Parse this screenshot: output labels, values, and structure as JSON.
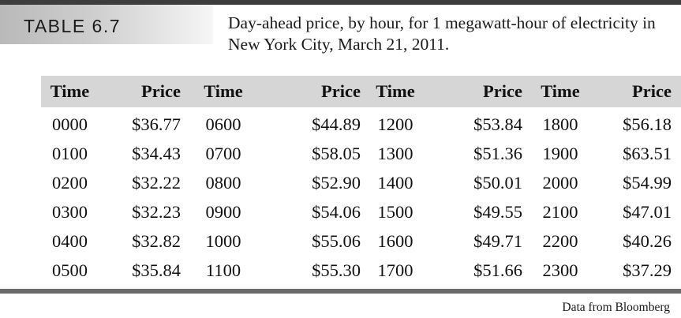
{
  "table_label": "TABLE 6.7",
  "caption": "Day-ahead price, by hour, for 1 megawatt-hour of electricity in New York City, March 21, 2011.",
  "headers": [
    "Time",
    "Price",
    "Time",
    "Price",
    "Time",
    "Price",
    "Time",
    "Price"
  ],
  "rows": [
    [
      "0000",
      "$36.77",
      "0600",
      "$44.89",
      "1200",
      "$53.84",
      "1800",
      "$56.18"
    ],
    [
      "0100",
      "$34.43",
      "0700",
      "$58.05",
      "1300",
      "$51.36",
      "1900",
      "$63.51"
    ],
    [
      "0200",
      "$32.22",
      "0800",
      "$52.90",
      "1400",
      "$50.01",
      "2000",
      "$54.99"
    ],
    [
      "0300",
      "$32.23",
      "0900",
      "$54.06",
      "1500",
      "$49.55",
      "2100",
      "$47.01"
    ],
    [
      "0400",
      "$32.82",
      "1000",
      "$55.06",
      "1600",
      "$49.71",
      "2200",
      "$40.26"
    ],
    [
      "0500",
      "$35.84",
      "1100",
      "$55.30",
      "1700",
      "$51.66",
      "2300",
      "$37.29"
    ]
  ],
  "source": "Data from Bloomberg",
  "colors": {
    "header_band": "#d6d6d6",
    "rule": "#3d3d3d",
    "tag_gradient_start": "#b9b9b9"
  }
}
